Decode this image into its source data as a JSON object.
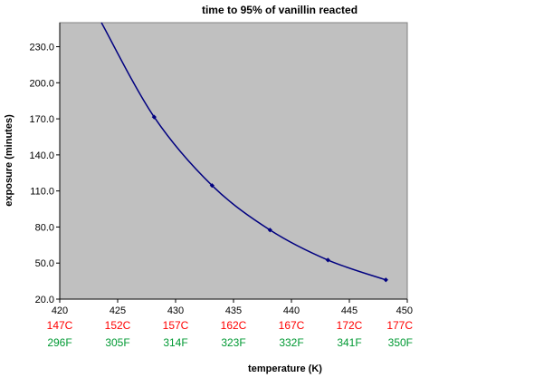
{
  "chart_data": {
    "type": "line",
    "title": "time to 95% of vanillin  reacted",
    "xlabel": "temperature (K)",
    "ylabel": "exposure (minutes)",
    "xlim": [
      420,
      450
    ],
    "ylim": [
      20,
      250
    ],
    "x_ticks": [
      420,
      425,
      430,
      435,
      440,
      445,
      450
    ],
    "x_tick_labels": [
      "420",
      "425",
      "430",
      "435",
      "440",
      "445",
      "450"
    ],
    "y_ticks": [
      20,
      50,
      80,
      110,
      140,
      170,
      200,
      230
    ],
    "y_tick_labels": [
      "20.0",
      "50.0",
      "80.0",
      "110.0",
      "140.0",
      "170.0",
      "200.0",
      "230.0"
    ],
    "celsius_labels": [
      "147C",
      "152C",
      "157C",
      "162C",
      "167C",
      "172C",
      "177C"
    ],
    "fahrenheit_labels": [
      "296F",
      "305F",
      "314F",
      "323F",
      "332F",
      "341F",
      "350F"
    ],
    "grid": false,
    "legend": "none",
    "series": [
      {
        "color": "#000080",
        "x": [
          428.15,
          433.15,
          438.15,
          443.15,
          448.15
        ],
        "y": [
          171.5,
          114.5,
          77.5,
          52.5,
          36.0
        ]
      }
    ],
    "curve_extension": {
      "x": 423.6,
      "y": 250
    },
    "colors": {
      "plot_background": "#c0c0c0",
      "series_line": "#000080",
      "celsius_text": "#ff0000",
      "fahrenheit_text": "#009933"
    }
  }
}
